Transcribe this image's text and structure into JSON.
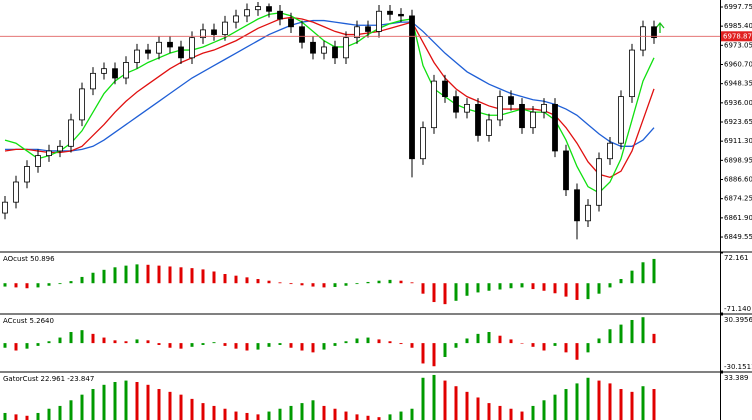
{
  "chart_data": [
    {
      "type": "candlestick",
      "open": [
        6865,
        6872,
        6885,
        6895,
        6902,
        6905,
        6908,
        6925,
        6945,
        6955,
        6958,
        6952,
        6962,
        6970,
        6968,
        6975,
        6972,
        6965,
        6978,
        6983,
        6980,
        6988,
        6992,
        6996,
        6998,
        6995,
        6990,
        6985,
        6975,
        6968,
        6972,
        6965,
        6978,
        6985,
        6982,
        6995,
        6993,
        6992,
        6900,
        6920,
        6950,
        6940,
        6930,
        6935,
        6915,
        6925,
        6940,
        6935,
        6920,
        6930,
        6935,
        6905,
        6880,
        6860,
        6870,
        6900,
        6910,
        6940,
        6970,
        6985
      ],
      "high": [
        6876,
        6889,
        6899,
        6906,
        6909,
        6912,
        6929,
        6949,
        6959,
        6962,
        6962,
        6966,
        6974,
        6974,
        6979,
        6979,
        6976,
        6982,
        6987,
        6987,
        6992,
        6996,
        7000,
        7001,
        7000,
        6999,
        6994,
        6989,
        6979,
        6976,
        6976,
        6982,
        6989,
        6989,
        6999,
        6999,
        6997,
        6996,
        6924,
        6954,
        6954,
        6944,
        6939,
        6939,
        6929,
        6944,
        6944,
        6939,
        6934,
        6939,
        6939,
        6909,
        6884,
        6874,
        6904,
        6914,
        6944,
        6974,
        6989,
        6989
      ],
      "low": [
        6861,
        6868,
        6881,
        6891,
        6898,
        6901,
        6904,
        6921,
        6941,
        6951,
        6948,
        6948,
        6958,
        6964,
        6964,
        6968,
        6961,
        6961,
        6974,
        6976,
        6976,
        6984,
        6988,
        6992,
        6991,
        6986,
        6981,
        6971,
        6964,
        6964,
        6961,
        6961,
        6974,
        6978,
        6978,
        6989,
        6988,
        6888,
        6896,
        6916,
        6936,
        6926,
        6926,
        6911,
        6911,
        6921,
        6931,
        6916,
        6916,
        6926,
        6901,
        6876,
        6848,
        6856,
        6866,
        6896,
        6906,
        6936,
        6966,
        6974
      ],
      "close": [
        6872,
        6885,
        6895,
        6902,
        6905,
        6908,
        6925,
        6945,
        6955,
        6958,
        6952,
        6962,
        6970,
        6968,
        6975,
        6972,
        6965,
        6978,
        6983,
        6980,
        6988,
        6992,
        6996,
        6998,
        6995,
        6990,
        6985,
        6975,
        6968,
        6972,
        6965,
        6978,
        6985,
        6982,
        6995,
        6993,
        6992,
        6900,
        6920,
        6950,
        6940,
        6930,
        6935,
        6915,
        6925,
        6940,
        6935,
        6920,
        6930,
        6935,
        6905,
        6880,
        6860,
        6870,
        6900,
        6910,
        6940,
        6970,
        6985,
        6978
      ],
      "series": [
        {
          "color": "#1f5fd6",
          "values": [
            6906,
            6906,
            6906,
            6906,
            6905,
            6905,
            6905,
            6906,
            6908,
            6912,
            6917,
            6922,
            6927,
            6932,
            6937,
            6942,
            6947,
            6952,
            6956,
            6960,
            6964,
            6968,
            6972,
            6976,
            6980,
            6983,
            6986,
            6988,
            6989,
            6989,
            6988,
            6987,
            6986,
            6986,
            6986,
            6987,
            6988,
            6988,
            6982,
            6975,
            6968,
            6962,
            6956,
            6952,
            6948,
            6945,
            6942,
            6940,
            6938,
            6937,
            6935,
            6932,
            6928,
            6922,
            6916,
            6911,
            6908,
            6908,
            6912,
            6920
          ]
        },
        {
          "color": "#e01010",
          "values": [
            6905,
            6906,
            6906,
            6905,
            6904,
            6904,
            6905,
            6908,
            6915,
            6922,
            6930,
            6937,
            6943,
            6948,
            6953,
            6958,
            6962,
            6965,
            6968,
            6970,
            6973,
            6976,
            6980,
            6984,
            6987,
            6990,
            6991,
            6990,
            6988,
            6985,
            6982,
            6980,
            6980,
            6981,
            6982,
            6984,
            6986,
            6988,
            6975,
            6962,
            6952,
            6945,
            6940,
            6937,
            6934,
            6932,
            6932,
            6932,
            6932,
            6931,
            6928,
            6920,
            6910,
            6898,
            6890,
            6888,
            6892,
            6905,
            6925,
            6945
          ]
        },
        {
          "color": "#10e010",
          "values": [
            6912,
            6910,
            6905,
            6900,
            6902,
            6905,
            6910,
            6918,
            6930,
            6942,
            6950,
            6955,
            6958,
            6962,
            6965,
            6968,
            6970,
            6970,
            6972,
            6975,
            6978,
            6982,
            6986,
            6990,
            6993,
            6994,
            6992,
            6988,
            6982,
            6976,
            6972,
            6972,
            6975,
            6980,
            6984,
            6987,
            6989,
            6990,
            6960,
            6945,
            6940,
            6935,
            6932,
            6930,
            6928,
            6928,
            6930,
            6932,
            6930,
            6930,
            6925,
            6912,
            6895,
            6882,
            6878,
            6885,
            6900,
            6925,
            6950,
            6965
          ]
        }
      ],
      "current_price": 6978.87,
      "ylim": [
        6840.55,
        7002.25
      ],
      "yticks": [
        6997.75,
        {
          "value": 6985.4,
          "label": "6985.40"
        },
        6973.05,
        {
          "value": 6960.7,
          "label": "6960.70"
        },
        6948.35,
        {
          "value": 6936,
          "label": "6936.00"
        },
        6923.65,
        {
          "value": 6911.3,
          "label": "6911.30"
        },
        6898.95,
        {
          "value": 6886.6,
          "label": "6886.60"
        },
        6874.25,
        {
          "value": 6861.9,
          "label": "6861.90"
        },
        6849.55
      ]
    },
    {
      "type": "histogram",
      "title": "AOcust 50.896",
      "up_color": "#009a00",
      "down_color": "#e00000",
      "values": [
        -8,
        -10,
        -12,
        -10,
        -6,
        -2,
        5,
        15,
        25,
        32,
        38,
        42,
        45,
        44,
        42,
        40,
        38,
        36,
        33,
        28,
        22,
        18,
        14,
        10,
        6,
        2,
        -2,
        -5,
        -8,
        -10,
        -9,
        -6,
        -2,
        3,
        6,
        8,
        6,
        2,
        -25,
        -45,
        -50,
        -42,
        -30,
        -22,
        -18,
        -15,
        -12,
        -10,
        -14,
        -18,
        -24,
        -32,
        -40,
        -38,
        -25,
        -10,
        10,
        30,
        50,
        58
      ],
      "ylim": [
        -71.14,
        72.161
      ],
      "yticks": [
        72.161,
        {
          "value": -71.14,
          "label": "-71.140"
        }
      ]
    },
    {
      "type": "histogram",
      "title": "ACcust 5.2640",
      "up_color": "#009a00",
      "down_color": "#e00000",
      "values": [
        -5,
        -8,
        -6,
        -3,
        2,
        6,
        12,
        14,
        10,
        6,
        3,
        2,
        4,
        3,
        -2,
        -5,
        -6,
        -4,
        -2,
        1,
        -3,
        -6,
        -8,
        -7,
        -4,
        -2,
        -5,
        -8,
        -10,
        -7,
        -3,
        2,
        5,
        6,
        4,
        2,
        -1,
        -5,
        -22,
        -25,
        -15,
        -5,
        5,
        10,
        12,
        8,
        4,
        0,
        -4,
        -8,
        -3,
        -10,
        -18,
        -10,
        5,
        15,
        20,
        25,
        28,
        10
      ],
      "ylim": [
        -30.1511,
        30.3956
      ],
      "yticks": [
        30.3956,
        -30.1511
      ]
    },
    {
      "type": "histogram",
      "title": "GatorCust 22.961 -23.847",
      "up_color": "#009a00",
      "down_color": "#e00000",
      "values": [
        5,
        4,
        3,
        5,
        8,
        10,
        14,
        18,
        22,
        25,
        27,
        28,
        27,
        25,
        22,
        20,
        18,
        15,
        12,
        10,
        8,
        6,
        5,
        4,
        6,
        8,
        10,
        12,
        14,
        10,
        8,
        6,
        4,
        3,
        2,
        4,
        6,
        8,
        30,
        32,
        28,
        24,
        20,
        16,
        12,
        10,
        8,
        6,
        10,
        14,
        18,
        22,
        26,
        30,
        28,
        26,
        22,
        20,
        24,
        22
      ],
      "ylim": [
        0,
        33.389
      ],
      "yticks": [
        33.389
      ]
    }
  ]
}
